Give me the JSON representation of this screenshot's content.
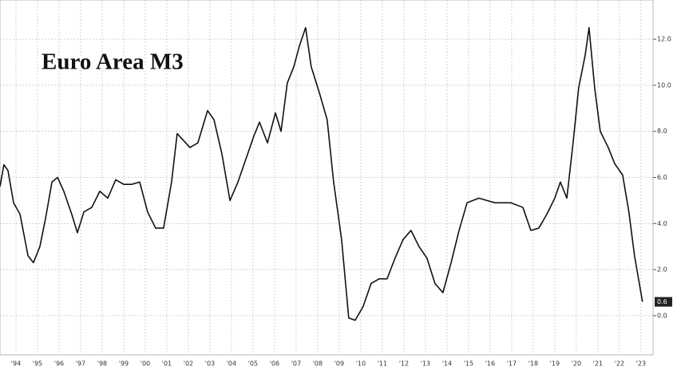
{
  "chart_data": {
    "type": "line",
    "title": "Euro Area M3",
    "x": [
      1993.76,
      1993.94,
      1994.13,
      1994.39,
      1994.69,
      1995.06,
      1995.31,
      1995.61,
      1995.87,
      1996.17,
      1996.43,
      1996.72,
      1997.09,
      1997.35,
      1997.65,
      1998.02,
      1998.39,
      1998.76,
      1999.13,
      1999.5,
      1999.87,
      2000.24,
      2000.61,
      2000.98,
      2001.35,
      2001.72,
      2001.98,
      2002.28,
      2002.57,
      2002.94,
      2003.39,
      2003.69,
      2004.06,
      2004.43,
      2004.8,
      2005.17,
      2005.54,
      2005.8,
      2006.17,
      2006.54,
      2006.8,
      2007.09,
      2007.39,
      2007.65,
      2007.94,
      2008.2,
      2008.57,
      2008.94,
      2009.24,
      2009.61,
      2009.94,
      2010.24,
      2010.61,
      2010.98,
      2011.35,
      2011.72,
      2012.09,
      2012.46,
      2012.83,
      2013.2,
      2013.57,
      2013.94,
      2014.31,
      2014.69,
      2015.06,
      2015.43,
      2015.98,
      2016.72,
      2017.46,
      2018.02,
      2018.39,
      2018.76,
      2019.13,
      2019.5,
      2019.76,
      2020.06,
      2020.35,
      2020.61,
      2020.91,
      2021.09,
      2021.35,
      2021.61,
      2021.98,
      2022.28,
      2022.65,
      2022.94,
      2023.2,
      2023.57
    ],
    "series": [
      {
        "color": "#111111",
        "values": [
          5.6,
          6.55,
          6.3,
          4.9,
          4.4,
          2.6,
          2.3,
          3.0,
          4.2,
          5.8,
          6.0,
          5.4,
          4.4,
          3.6,
          4.5,
          4.7,
          5.4,
          5.1,
          5.9,
          5.7,
          5.7,
          5.8,
          4.5,
          3.8,
          3.8,
          5.8,
          7.9,
          7.6,
          7.3,
          7.5,
          8.9,
          8.5,
          7.0,
          5.0,
          5.8,
          6.8,
          7.8,
          8.4,
          7.5,
          8.8,
          8.0,
          10.1,
          10.8,
          11.7,
          12.5,
          10.8,
          9.7,
          8.5,
          5.8,
          3.3,
          -0.1,
          -0.2,
          0.4,
          1.4,
          1.6,
          1.6,
          2.5,
          3.3,
          3.7,
          3.0,
          2.5,
          1.4,
          1.0,
          2.3,
          3.7,
          4.9,
          5.1,
          4.9,
          4.9,
          4.7,
          3.7,
          3.8,
          4.4,
          5.1,
          5.8,
          5.1,
          7.5,
          9.9,
          11.3,
          12.5,
          9.9,
          8.0,
          7.3,
          6.6,
          6.1,
          4.5,
          2.6,
          0.6
        ]
      }
    ],
    "xlim": [
      1993.76,
      2024.06
    ],
    "ylim": [
      -1.7,
      13.7
    ],
    "xticks": [
      {
        "value": 1994.5,
        "label": "'94"
      },
      {
        "value": 1995.5,
        "label": "'95"
      },
      {
        "value": 1996.5,
        "label": "'96"
      },
      {
        "value": 1997.5,
        "label": "'97"
      },
      {
        "value": 1998.5,
        "label": "'98"
      },
      {
        "value": 1999.5,
        "label": "'99"
      },
      {
        "value": 2000.5,
        "label": "'00"
      },
      {
        "value": 2001.5,
        "label": "'01"
      },
      {
        "value": 2002.5,
        "label": "'02"
      },
      {
        "value": 2003.5,
        "label": "'03"
      },
      {
        "value": 2004.5,
        "label": "'04"
      },
      {
        "value": 2005.5,
        "label": "'05"
      },
      {
        "value": 2006.5,
        "label": "'06"
      },
      {
        "value": 2007.5,
        "label": "'07"
      },
      {
        "value": 2008.5,
        "label": "'08"
      },
      {
        "value": 2009.5,
        "label": "'09"
      },
      {
        "value": 2010.5,
        "label": "'10"
      },
      {
        "value": 2011.5,
        "label": "'11"
      },
      {
        "value": 2012.5,
        "label": "'12"
      },
      {
        "value": 2013.5,
        "label": "'13"
      },
      {
        "value": 2014.5,
        "label": "'14"
      },
      {
        "value": 2015.5,
        "label": "'15"
      },
      {
        "value": 2016.5,
        "label": "'16"
      },
      {
        "value": 2017.5,
        "label": "'17"
      },
      {
        "value": 2018.5,
        "label": "'18"
      },
      {
        "value": 2019.5,
        "label": "'19"
      },
      {
        "value": 2020.5,
        "label": "'20"
      },
      {
        "value": 2021.5,
        "label": "'21"
      },
      {
        "value": 2022.5,
        "label": "'22"
      },
      {
        "value": 2023.5,
        "label": "'23"
      }
    ],
    "yticks": [
      {
        "value": 0,
        "label": "0.0"
      },
      {
        "value": 2,
        "label": "2.0"
      },
      {
        "value": 4,
        "label": "4.0"
      },
      {
        "value": 6,
        "label": "6.0"
      },
      {
        "value": 8,
        "label": "8.0"
      },
      {
        "value": 10,
        "label": "10.0"
      },
      {
        "value": 12,
        "label": "12.0"
      }
    ],
    "grid": true
  }
}
